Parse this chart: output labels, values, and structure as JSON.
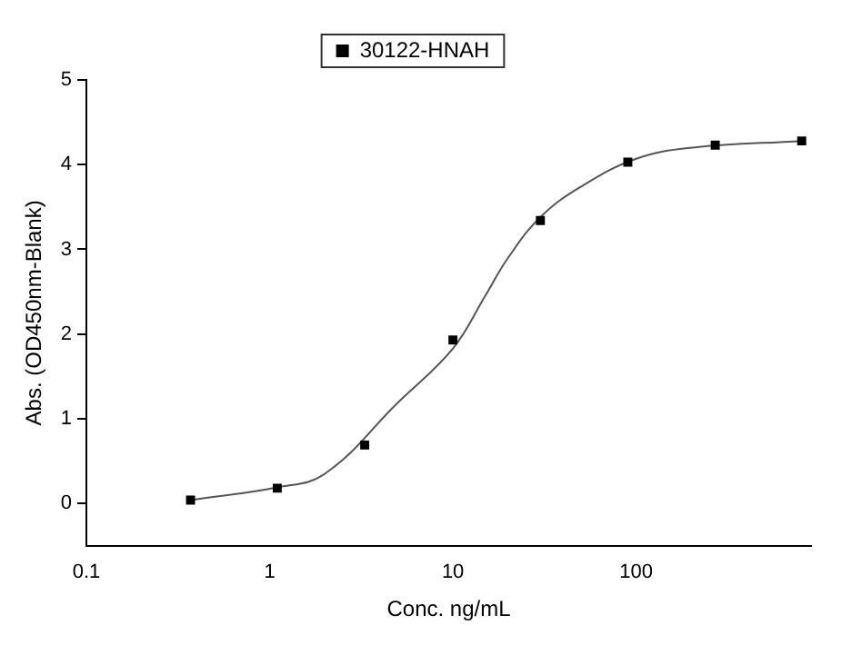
{
  "chart_data": {
    "type": "scatter",
    "xlabel": "Conc. ng/mL",
    "ylabel": "Abs. (OD450nm-Blank)",
    "log": "x",
    "xlim": [
      0.1,
      900
    ],
    "xticks": [
      0.1,
      1,
      10,
      100
    ],
    "ylim": [
      -0.5,
      5
    ],
    "yticks": [
      0,
      1,
      2,
      3,
      4,
      5
    ],
    "grid": false,
    "legend": "top",
    "series": [
      {
        "name": "30122-HNAH",
        "type": "scatter",
        "marker": "square",
        "color": "#000000",
        "x": [
          0.37,
          1.1,
          3.3,
          10,
          30,
          90,
          270,
          800
        ],
        "values": [
          0.04,
          0.18,
          0.69,
          1.93,
          3.34,
          4.03,
          4.23,
          4.28
        ]
      },
      {
        "type": "line",
        "marker": "none",
        "color": "#555555",
        "line_style": "solid",
        "x": [
          0.37,
          1.1,
          2,
          5,
          10,
          15,
          20,
          30,
          50,
          100,
          200,
          800
        ],
        "values": [
          0.04,
          0.19,
          0.35,
          1.19,
          1.83,
          2.45,
          2.9,
          3.38,
          3.74,
          4.07,
          4.2,
          4.28
        ]
      }
    ]
  }
}
